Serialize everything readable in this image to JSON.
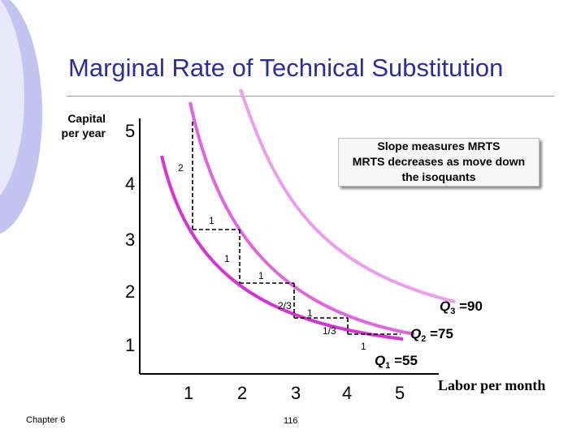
{
  "slide": {
    "title": "Marginal Rate of Technical Substitution",
    "footer_left": "Chapter 6",
    "page_number": "116"
  },
  "chart": {
    "y_axis_label": "Capital per year",
    "y_axis_label_lines": [
      "Capital",
      "per year"
    ],
    "x_axis_label": "Labor per month",
    "x_ticks": [
      "1",
      "2",
      "3",
      "4",
      "5"
    ],
    "y_ticks": [
      "1",
      "2",
      "3",
      "4",
      "5"
    ]
  },
  "note": {
    "lines": [
      "Slope measures MRTS",
      "MRTS decreases as move down",
      "the isoquants"
    ]
  },
  "step_labels": [
    "2",
    "1",
    "1",
    "1",
    "2/3",
    "1",
    "1/3",
    "1"
  ],
  "isoquants": [
    {
      "name": "Q",
      "subscript": "1",
      "value": "55",
      "color": "#d633d6"
    },
    {
      "name": "Q",
      "subscript": "2",
      "value": "75",
      "color": "#e066e0"
    },
    {
      "name": "Q",
      "subscript": "3",
      "value": "90",
      "color": "#ee9cee"
    }
  ],
  "colors": {
    "title": "#2d2d9a",
    "background_swoosh": "#b8b8ee",
    "q1": "#d633d6",
    "q2": "#e066e0",
    "q3": "#ee9cee"
  },
  "chart_data": {
    "type": "line",
    "x_label": "Labor per month",
    "y_label": "Capital per year",
    "xlim": [
      0,
      5
    ],
    "ylim": [
      0,
      5
    ],
    "series": [
      {
        "name": "Q1 =55",
        "points": [
          [
            1,
            5
          ],
          [
            2,
            3
          ],
          [
            3,
            2
          ],
          [
            4,
            1.33
          ],
          [
            5,
            1
          ]
        ]
      },
      {
        "name": "Q2 =75",
        "points": [
          [
            2.05,
            5.1
          ],
          [
            3,
            3.0
          ],
          [
            4,
            2.2
          ],
          [
            5.5,
            1.45
          ]
        ]
      },
      {
        "name": "Q3 =90",
        "points": [
          [
            2.95,
            5.1
          ],
          [
            4,
            3.2
          ],
          [
            5.5,
            2.1
          ]
        ]
      }
    ],
    "mrts_steps": [
      {
        "from": [
          1,
          5
        ],
        "to": [
          2,
          3
        ],
        "dK": "2",
        "dL": "1"
      },
      {
        "from": [
          2,
          3
        ],
        "to": [
          3,
          2
        ],
        "dK": "1",
        "dL": "1"
      },
      {
        "from": [
          3,
          2
        ],
        "to": [
          4,
          1.33
        ],
        "dK": "2/3",
        "dL": "1"
      },
      {
        "from": [
          4,
          1.33
        ],
        "to": [
          5,
          1
        ],
        "dK": "1/3",
        "dL": "1"
      }
    ]
  }
}
